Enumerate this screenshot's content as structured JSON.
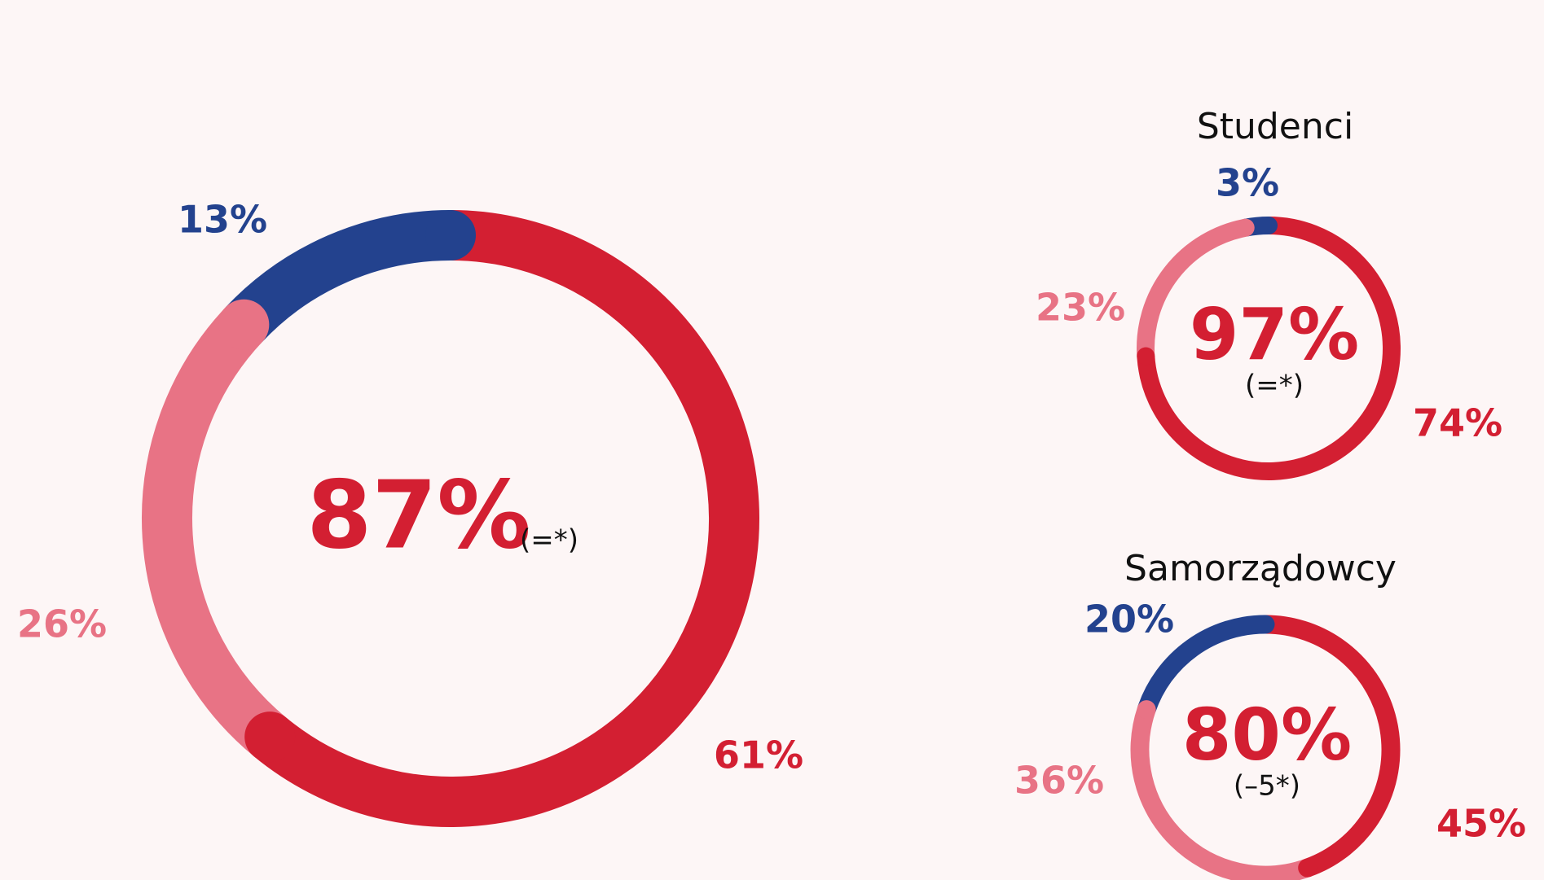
{
  "chart_data": [
    {
      "type": "pie",
      "donut": true,
      "categories": [
        "61%",
        "26%",
        "13%"
      ],
      "values": [
        61,
        26,
        13
      ],
      "value_labels": [
        "61%",
        "26%",
        "13%"
      ],
      "colors": [
        "#d31f32",
        "#e87385",
        "#23428e"
      ],
      "center_label": "87%",
      "center_sublabel": "(=*)"
    },
    {
      "type": "pie",
      "donut": true,
      "title": "Studenci",
      "values": [
        74,
        23,
        3
      ],
      "value_labels": [
        "74%",
        "23%",
        "3%"
      ],
      "colors": [
        "#d31f32",
        "#e87385",
        "#23428e"
      ],
      "center_label": "97%",
      "center_sublabel": "(=*)"
    },
    {
      "type": "pie",
      "donut": true,
      "title": "Samorządowcy",
      "values": [
        45,
        36,
        20
      ],
      "value_labels": [
        "45%",
        "36%",
        "20%"
      ],
      "colors": [
        "#d31f32",
        "#e87385",
        "#23428e"
      ],
      "center_label": "80%",
      "center_sublabel": "(–5*)"
    }
  ]
}
